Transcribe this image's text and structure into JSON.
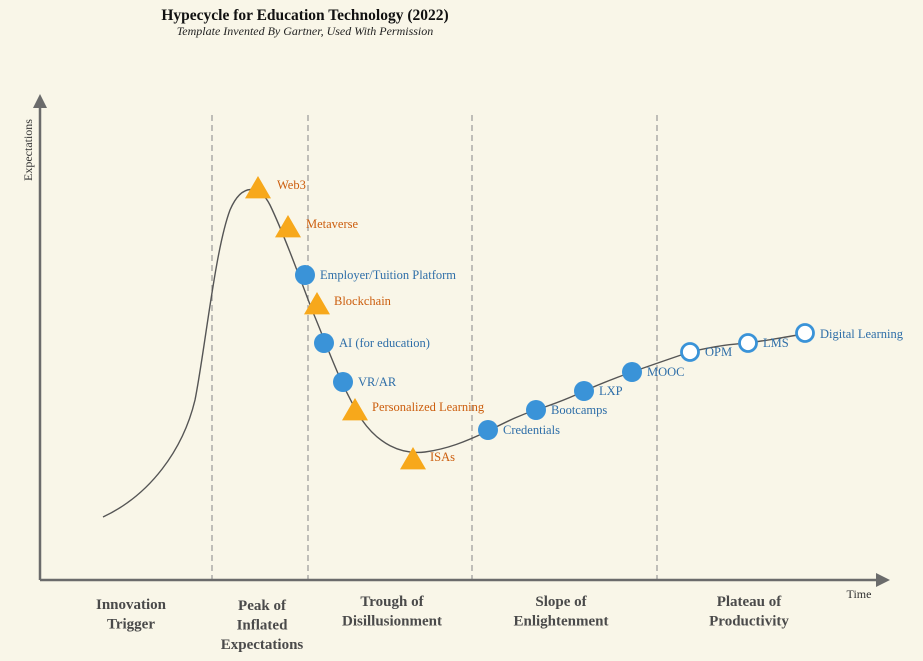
{
  "title": "Hypecycle for Education Technology (2022)",
  "subtitle": "Template Invented By Gartner, Used With Permission",
  "axes": {
    "y_label": "Expectations",
    "x_label": "Time"
  },
  "colors": {
    "background": "#f9f6e8",
    "emerging": "#f7a81b",
    "emerging_text": "#cc5e0e",
    "established": "#3a93d8",
    "established_text": "#2e6ea8",
    "curve": "#555555",
    "axis": "#6b6b6b",
    "divider": "#999999"
  },
  "phases": [
    {
      "id": "innovation-trigger",
      "lines": [
        "Innovation",
        "Trigger"
      ]
    },
    {
      "id": "peak-of-inflated-expectations",
      "lines": [
        "Peak of",
        "Inflated",
        "Expectations"
      ]
    },
    {
      "id": "trough-of-disillusionment",
      "lines": [
        "Trough  of",
        "Disillusionment"
      ]
    },
    {
      "id": "slope-of-enlightenment",
      "lines": [
        "Slope of",
        "Enlightenment"
      ]
    },
    {
      "id": "plateau-of-productivity",
      "lines": [
        "Plateau of",
        "Productivity"
      ]
    }
  ],
  "technologies": [
    {
      "label": "Web3",
      "marker": "triangle"
    },
    {
      "label": "Metaverse",
      "marker": "triangle"
    },
    {
      "label": "Employer/Tuition Platform",
      "marker": "filled-circle"
    },
    {
      "label": "Blockchain",
      "marker": "triangle"
    },
    {
      "label": "AI (for education)",
      "marker": "filled-circle"
    },
    {
      "label": "VR/AR",
      "marker": "filled-circle"
    },
    {
      "label": "Personalized Learning",
      "marker": "triangle"
    },
    {
      "label": "ISAs",
      "marker": "triangle"
    },
    {
      "label": "Credentials",
      "marker": "filled-circle"
    },
    {
      "label": "Bootcamps",
      "marker": "filled-circle"
    },
    {
      "label": "LXP",
      "marker": "filled-circle"
    },
    {
      "label": "MOOC",
      "marker": "filled-circle"
    },
    {
      "label": "OPM",
      "marker": "open-circle"
    },
    {
      "label": "LMS",
      "marker": "open-circle"
    },
    {
      "label": "Digital Learning",
      "marker": "open-circle"
    }
  ]
}
